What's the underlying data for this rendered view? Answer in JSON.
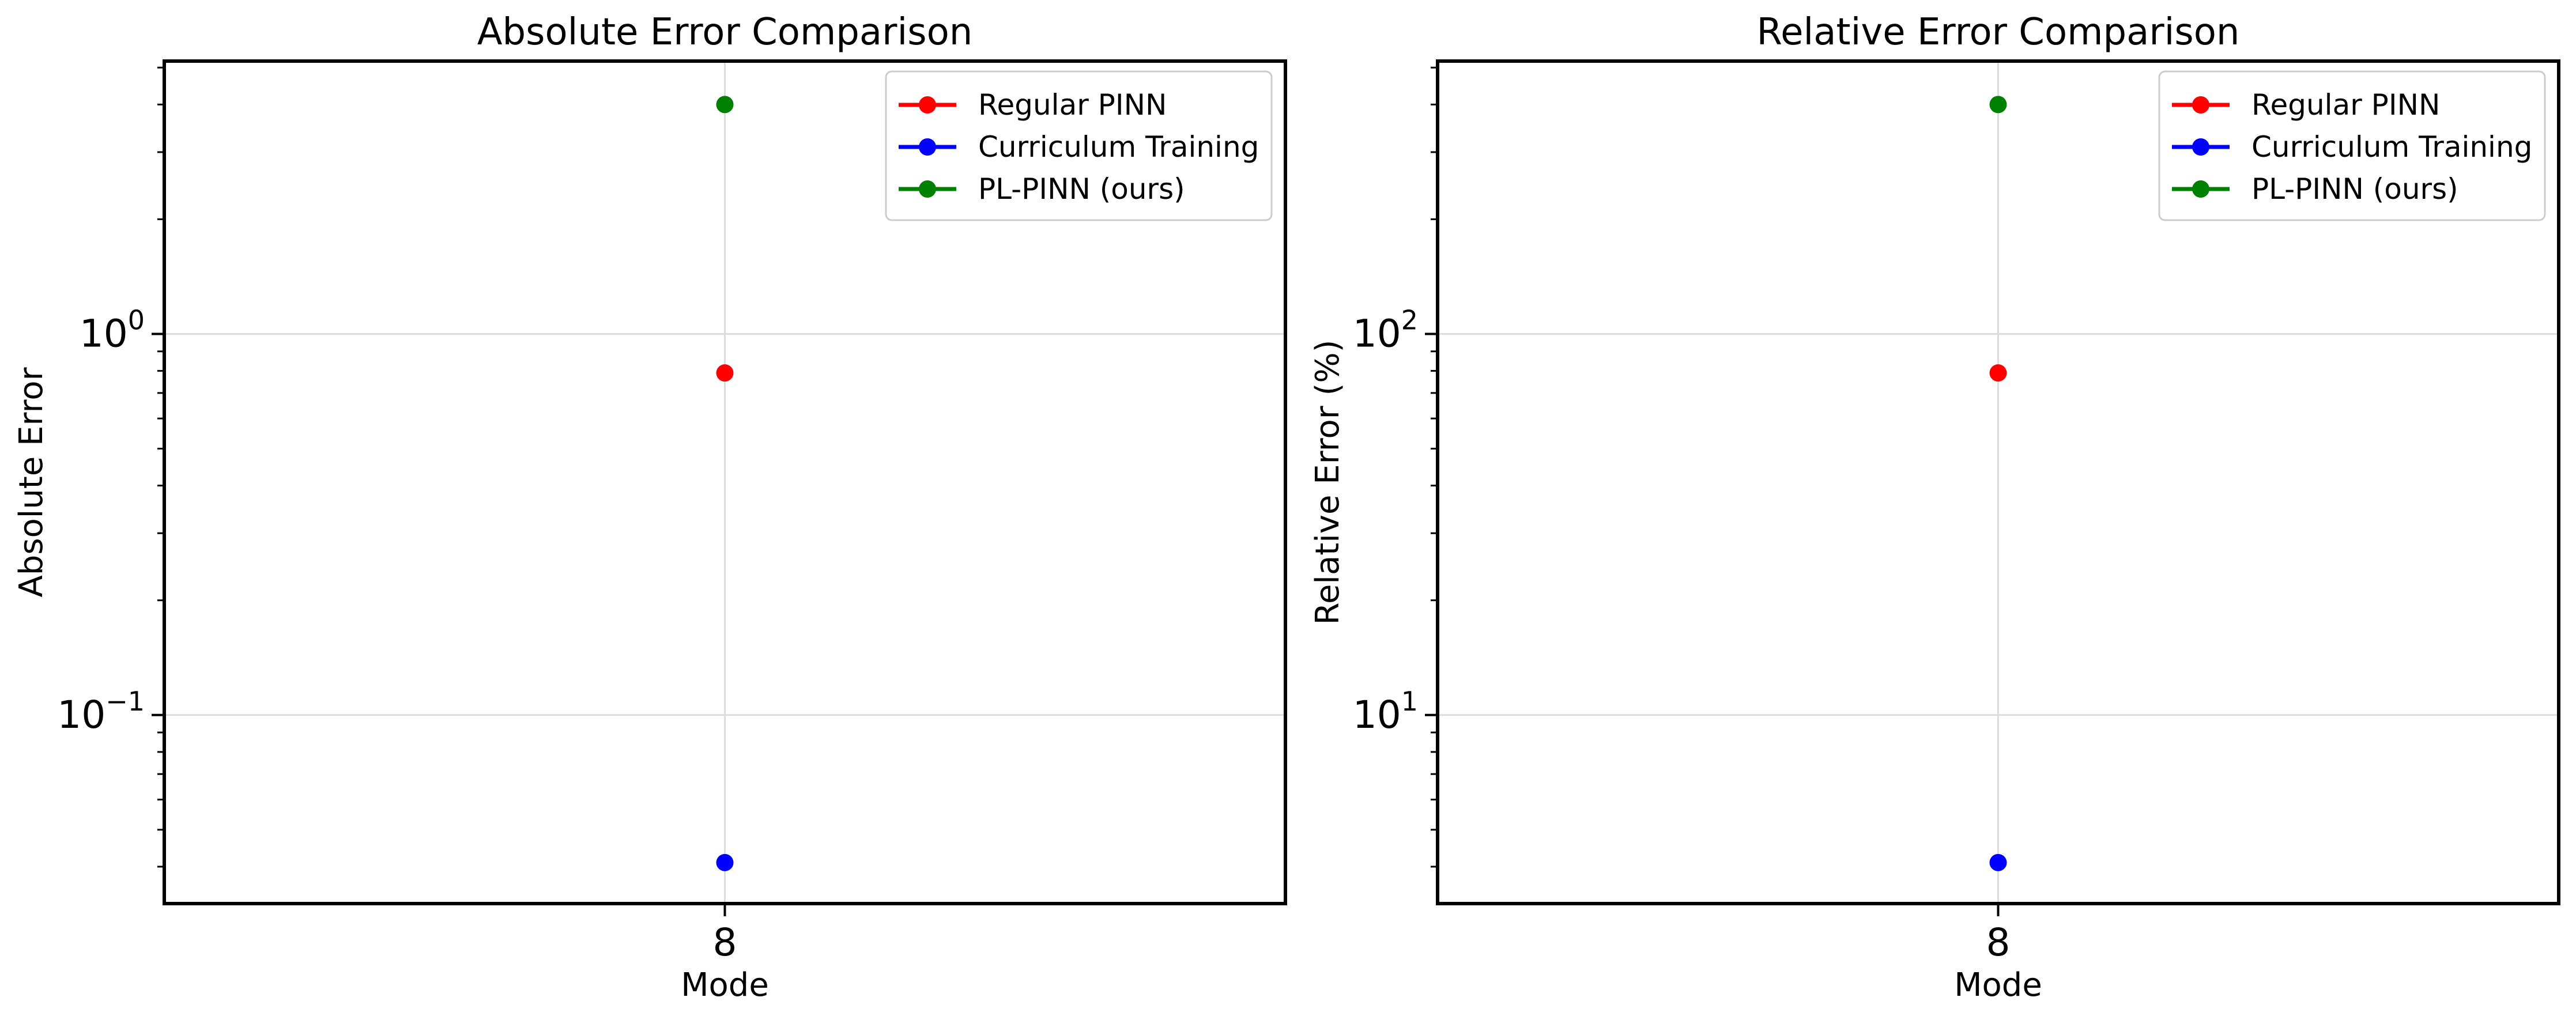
{
  "chart_data": [
    {
      "type": "line",
      "title": "Absolute Error Comparison",
      "xlabel": "Mode",
      "ylabel": "Absolute Error",
      "yscale": "log",
      "ylim": [
        0.032,
        5.2
      ],
      "categories": [
        "8"
      ],
      "yticks": [
        {
          "value": 0.1,
          "base": "10",
          "exp": "−1"
        },
        {
          "value": 1,
          "base": "10",
          "exp": "0"
        }
      ],
      "grid": true,
      "legend_position": "top-right",
      "series": [
        {
          "name": "Regular PINN",
          "color": "#ff0000",
          "values": [
            0.79
          ]
        },
        {
          "name": "Curriculum Training",
          "color": "#0000ff",
          "values": [
            0.041
          ]
        },
        {
          "name": "PL-PINN (ours)",
          "color": "#008000",
          "values": [
            4.0
          ]
        }
      ]
    },
    {
      "type": "line",
      "title": "Relative Error Comparison",
      "xlabel": "Mode",
      "ylabel": "Relative Error (%)",
      "yscale": "log",
      "ylim": [
        3.2,
        520
      ],
      "categories": [
        "8"
      ],
      "yticks": [
        {
          "value": 10,
          "base": "10",
          "exp": "1"
        },
        {
          "value": 100,
          "base": "10",
          "exp": "2"
        }
      ],
      "grid": true,
      "legend_position": "top-right",
      "series": [
        {
          "name": "Regular PINN",
          "color": "#ff0000",
          "values": [
            79
          ]
        },
        {
          "name": "Curriculum Training",
          "color": "#0000ff",
          "values": [
            4.1
          ]
        },
        {
          "name": "PL-PINN (ours)",
          "color": "#008000",
          "values": [
            400
          ]
        }
      ]
    }
  ]
}
